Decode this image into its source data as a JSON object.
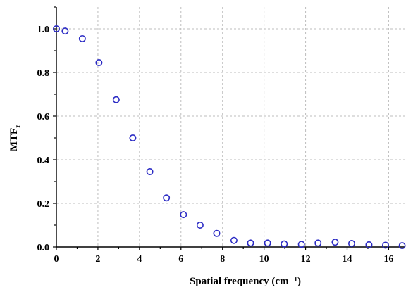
{
  "chart_data": {
    "type": "scatter",
    "title": "",
    "xlabel": "Spatial frequency (cm⁻¹)",
    "ylabel_main": "MTF",
    "ylabel_sub": "r",
    "xlim": [
      0,
      16.8
    ],
    "ylim": [
      0,
      1.1
    ],
    "x_ticks": [
      0,
      2,
      4,
      6,
      8,
      10,
      12,
      14,
      16
    ],
    "x_tick_labels": [
      "0",
      "2",
      "4",
      "6",
      "8",
      "10",
      "12",
      "14",
      "16"
    ],
    "y_ticks": [
      0,
      0.2,
      0.4,
      0.6,
      0.8,
      1.0
    ],
    "y_tick_labels": [
      "0.0",
      "0.2",
      "0.4",
      "0.6",
      "0.8",
      "1.0"
    ],
    "grid": true,
    "marker": "open-circle",
    "marker_color": "#2b2bc4",
    "series": [
      {
        "x": [
          0.0,
          0.42,
          1.25,
          2.05,
          2.88,
          3.68,
          4.5,
          5.3,
          6.12,
          6.92,
          7.72,
          8.55,
          9.35,
          10.17,
          10.97,
          11.8,
          12.6,
          13.42,
          14.22,
          15.05,
          15.85,
          16.65
        ],
        "y": [
          1.0,
          0.99,
          0.955,
          0.845,
          0.675,
          0.5,
          0.345,
          0.225,
          0.148,
          0.1,
          0.062,
          0.03,
          0.018,
          0.018,
          0.014,
          0.012,
          0.018,
          0.022,
          0.016,
          0.01,
          0.008,
          0.006
        ]
      }
    ]
  }
}
